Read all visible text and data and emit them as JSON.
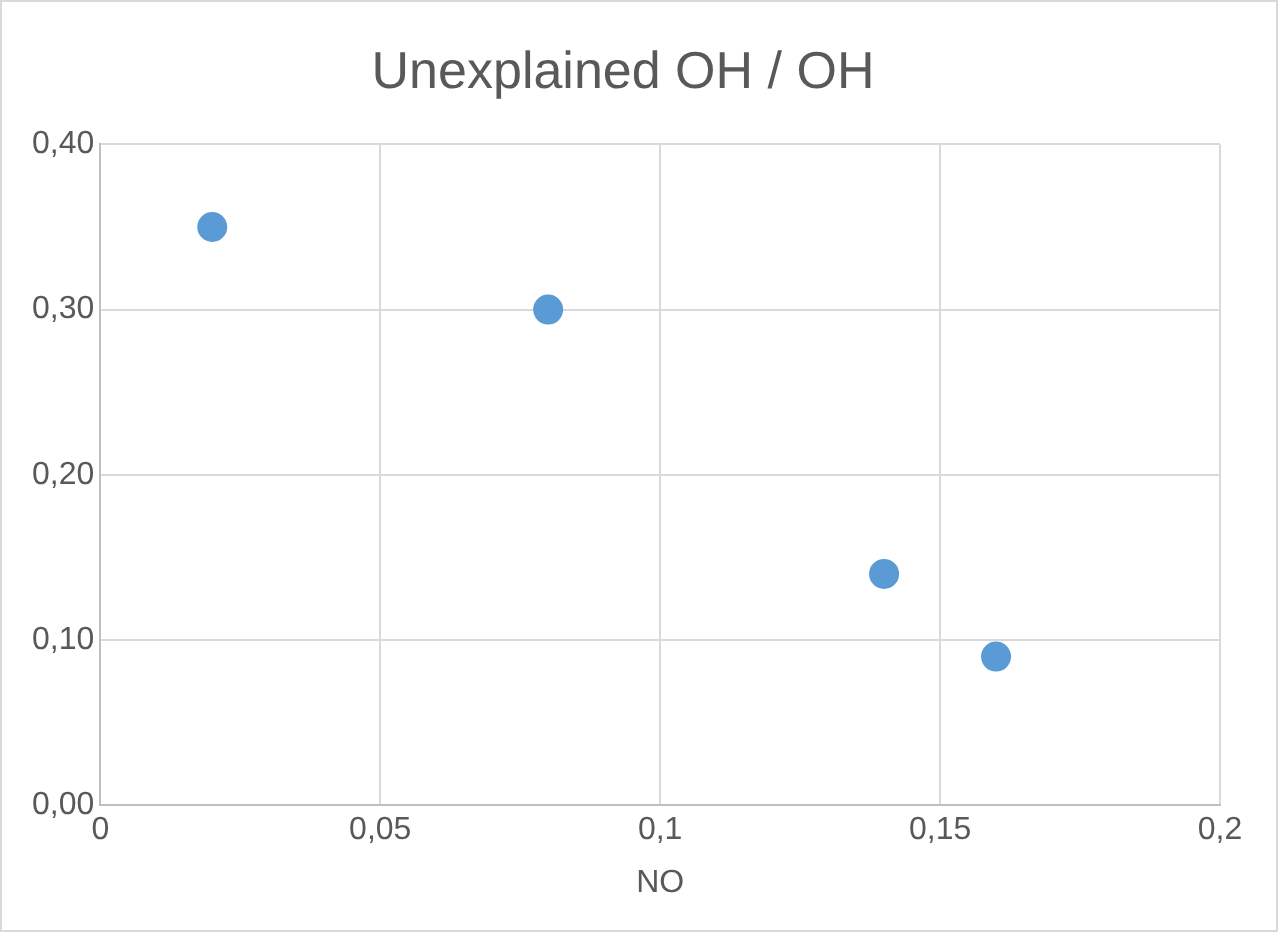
{
  "chart_data": {
    "type": "scatter",
    "title": "Unexplained OH / OH",
    "xlabel": "NO",
    "x": [
      0.02,
      0.08,
      0.14,
      0.16
    ],
    "series": [
      {
        "color": "#5b9bd5",
        "values": [
          0.35,
          0.3,
          0.14,
          0.09
        ]
      }
    ],
    "xlim": [
      0,
      0.2
    ],
    "xticks": [
      0,
      {
        "value": 0.05,
        "label": "0,05"
      },
      {
        "value": 0.1,
        "label": "0,1"
      },
      {
        "value": 0.15,
        "label": "0,15"
      },
      {
        "value": 0.2,
        "label": "0,2"
      }
    ],
    "ylim": [
      0,
      0.4
    ],
    "yticks": [
      {
        "value": 0,
        "label": "0,00"
      },
      {
        "value": 0.1,
        "label": "0,10"
      },
      {
        "value": 0.2,
        "label": "0,20"
      },
      {
        "value": 0.3,
        "label": "0,30"
      },
      {
        "value": 0.4,
        "label": "0,40"
      }
    ],
    "grid": true,
    "legend": false,
    "marker": "circle"
  }
}
